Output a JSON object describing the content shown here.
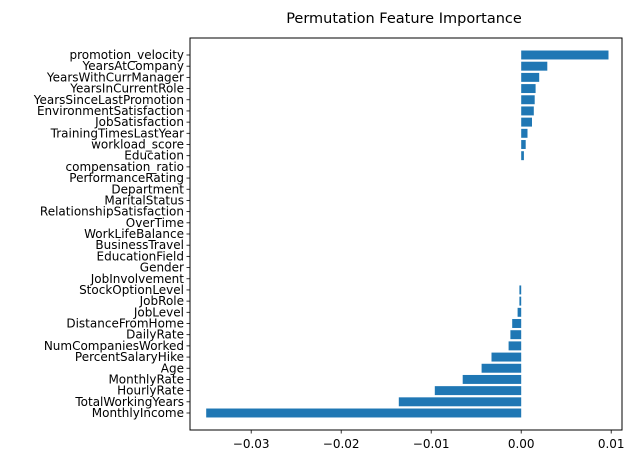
{
  "chart_data": {
    "type": "bar",
    "orientation": "horizontal",
    "title": "Permutation Feature Importance",
    "xlabel": "",
    "ylabel": "",
    "bar_color": "#1f77b4",
    "grid": false,
    "xlim": [
      -0.0368,
      0.0112
    ],
    "xticks": [
      -0.03,
      -0.02,
      -0.01,
      0.0,
      0.01
    ],
    "xtick_labels": [
      "−0.03",
      "−0.02",
      "−0.01",
      "0.00",
      "0.01"
    ],
    "categories": [
      "promotion_velocity",
      "YearsAtCompany",
      "YearsWithCurrManager",
      "YearsInCurrentRole",
      "YearsSinceLastPromotion",
      "EnvironmentSatisfaction",
      "JobSatisfaction",
      "TrainingTimesLastYear",
      "workload_score",
      "Education",
      "compensation_ratio",
      "PerformanceRating",
      "Department",
      "MaritalStatus",
      "RelationshipSatisfaction",
      "OverTime",
      "WorkLifeBalance",
      "BusinessTravel",
      "EducationField",
      "Gender",
      "JobInvolvement",
      "StockOptionLevel",
      "JobRole",
      "JobLevel",
      "DistanceFromHome",
      "DailyRate",
      "NumCompaniesWorked",
      "PercentSalaryHike",
      "Age",
      "MonthlyRate",
      "HourlyRate",
      "TotalWorkingYears",
      "MonthlyIncome"
    ],
    "values": [
      0.0097,
      0.0029,
      0.002,
      0.0016,
      0.0015,
      0.0014,
      0.0012,
      0.0007,
      0.0005,
      0.0003,
      0.0,
      0.0,
      0.0,
      0.0,
      0.0,
      0.0,
      0.0,
      0.0,
      0.0,
      0.0,
      0.0,
      -0.0002,
      -0.0002,
      -0.0004,
      -0.001,
      -0.0012,
      -0.0014,
      -0.0033,
      -0.0044,
      -0.0065,
      -0.0096,
      -0.0136,
      -0.035
    ]
  }
}
